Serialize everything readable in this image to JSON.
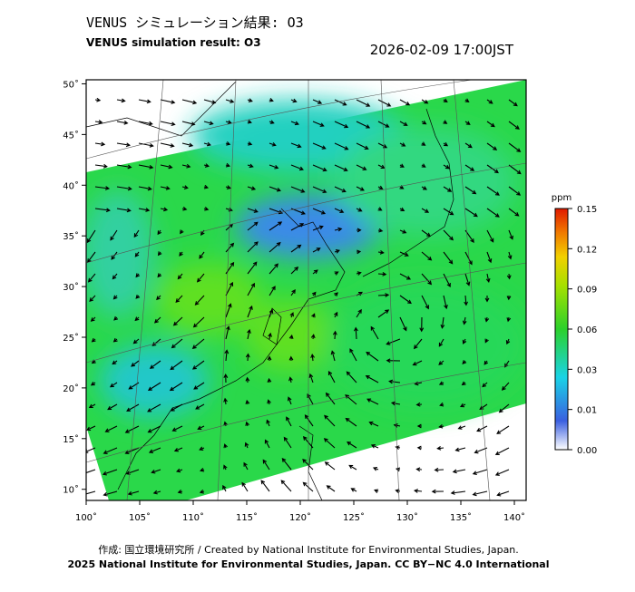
{
  "header": {
    "title": "VENUS シミュレーション結果: O3",
    "subtitle": "VENUS simulation result: O3",
    "timestamp": "2026-02-09 17:00JST"
  },
  "map": {
    "xlim": [
      100,
      141.1
    ],
    "ylim": [
      8.9,
      50.4
    ],
    "xticks": [
      {
        "value": 100,
        "label": "100˚"
      },
      {
        "value": 105,
        "label": "105˚"
      },
      {
        "value": 110,
        "label": "110˚"
      },
      {
        "value": 115,
        "label": "115˚"
      },
      {
        "value": 120,
        "label": "120˚"
      },
      {
        "value": 125,
        "label": "125˚"
      },
      {
        "value": 130,
        "label": "130˚"
      },
      {
        "value": 135,
        "label": "135˚"
      },
      {
        "value": 140,
        "label": "140˚"
      }
    ],
    "yticks": [
      {
        "value": 10,
        "label": "10˚"
      },
      {
        "value": 15,
        "label": "15˚"
      },
      {
        "value": 20,
        "label": "20˚"
      },
      {
        "value": 25,
        "label": "25˚"
      },
      {
        "value": 30,
        "label": "30˚"
      },
      {
        "value": 35,
        "label": "35˚"
      },
      {
        "value": 40,
        "label": "40˚"
      },
      {
        "value": 45,
        "label": "45˚"
      },
      {
        "value": 50,
        "label": "50˚"
      }
    ]
  },
  "colorbar": {
    "unit": "ppm",
    "ticks": [
      {
        "value": 0,
        "label": "0.00"
      },
      0.01,
      0.03,
      0.06,
      0.09,
      0.12,
      0.15
    ]
  },
  "footer": {
    "credit": "作成: 国立環境研究所 / Created by National Institute for Environmental Studies, Japan.",
    "license": "2025 National Institute for Environmental Studies, Japan. CC BY−NC 4.0 International"
  }
}
